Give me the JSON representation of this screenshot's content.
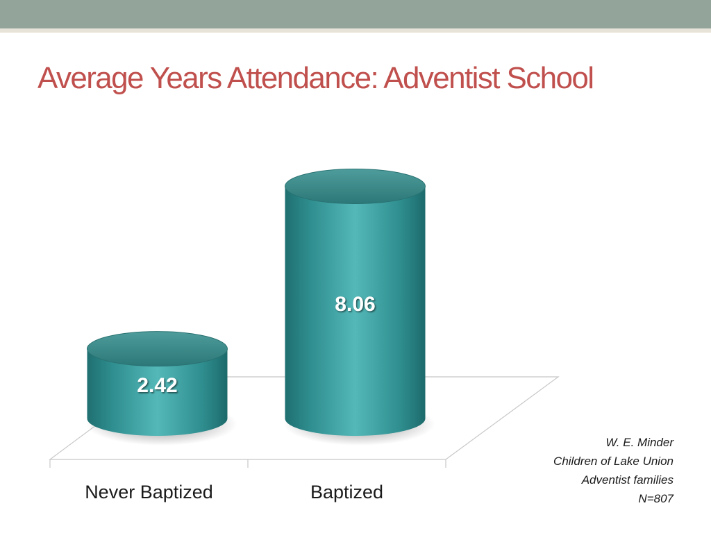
{
  "slide": {
    "title": "Average Years Attendance: Adventist School",
    "title_color": "#c0504d",
    "header_bar_color": "#93a59b",
    "header_line_color": "#e8e3d8"
  },
  "chart_data": {
    "type": "bar",
    "style": "3d-cylinder",
    "categories": [
      "Never Baptized",
      "Baptized"
    ],
    "values": [
      2.42,
      8.06
    ],
    "data_labels": [
      "2.42",
      "8.06"
    ],
    "title": "",
    "xlabel": "",
    "ylabel": "",
    "ylim": [
      0,
      10
    ],
    "grid": false,
    "legend": "none",
    "bar_color": "#3a9a9a"
  },
  "source_note": {
    "lines": [
      "W. E. Minder",
      "Children of Lake Union",
      "Adventist families",
      "N=807"
    ]
  }
}
